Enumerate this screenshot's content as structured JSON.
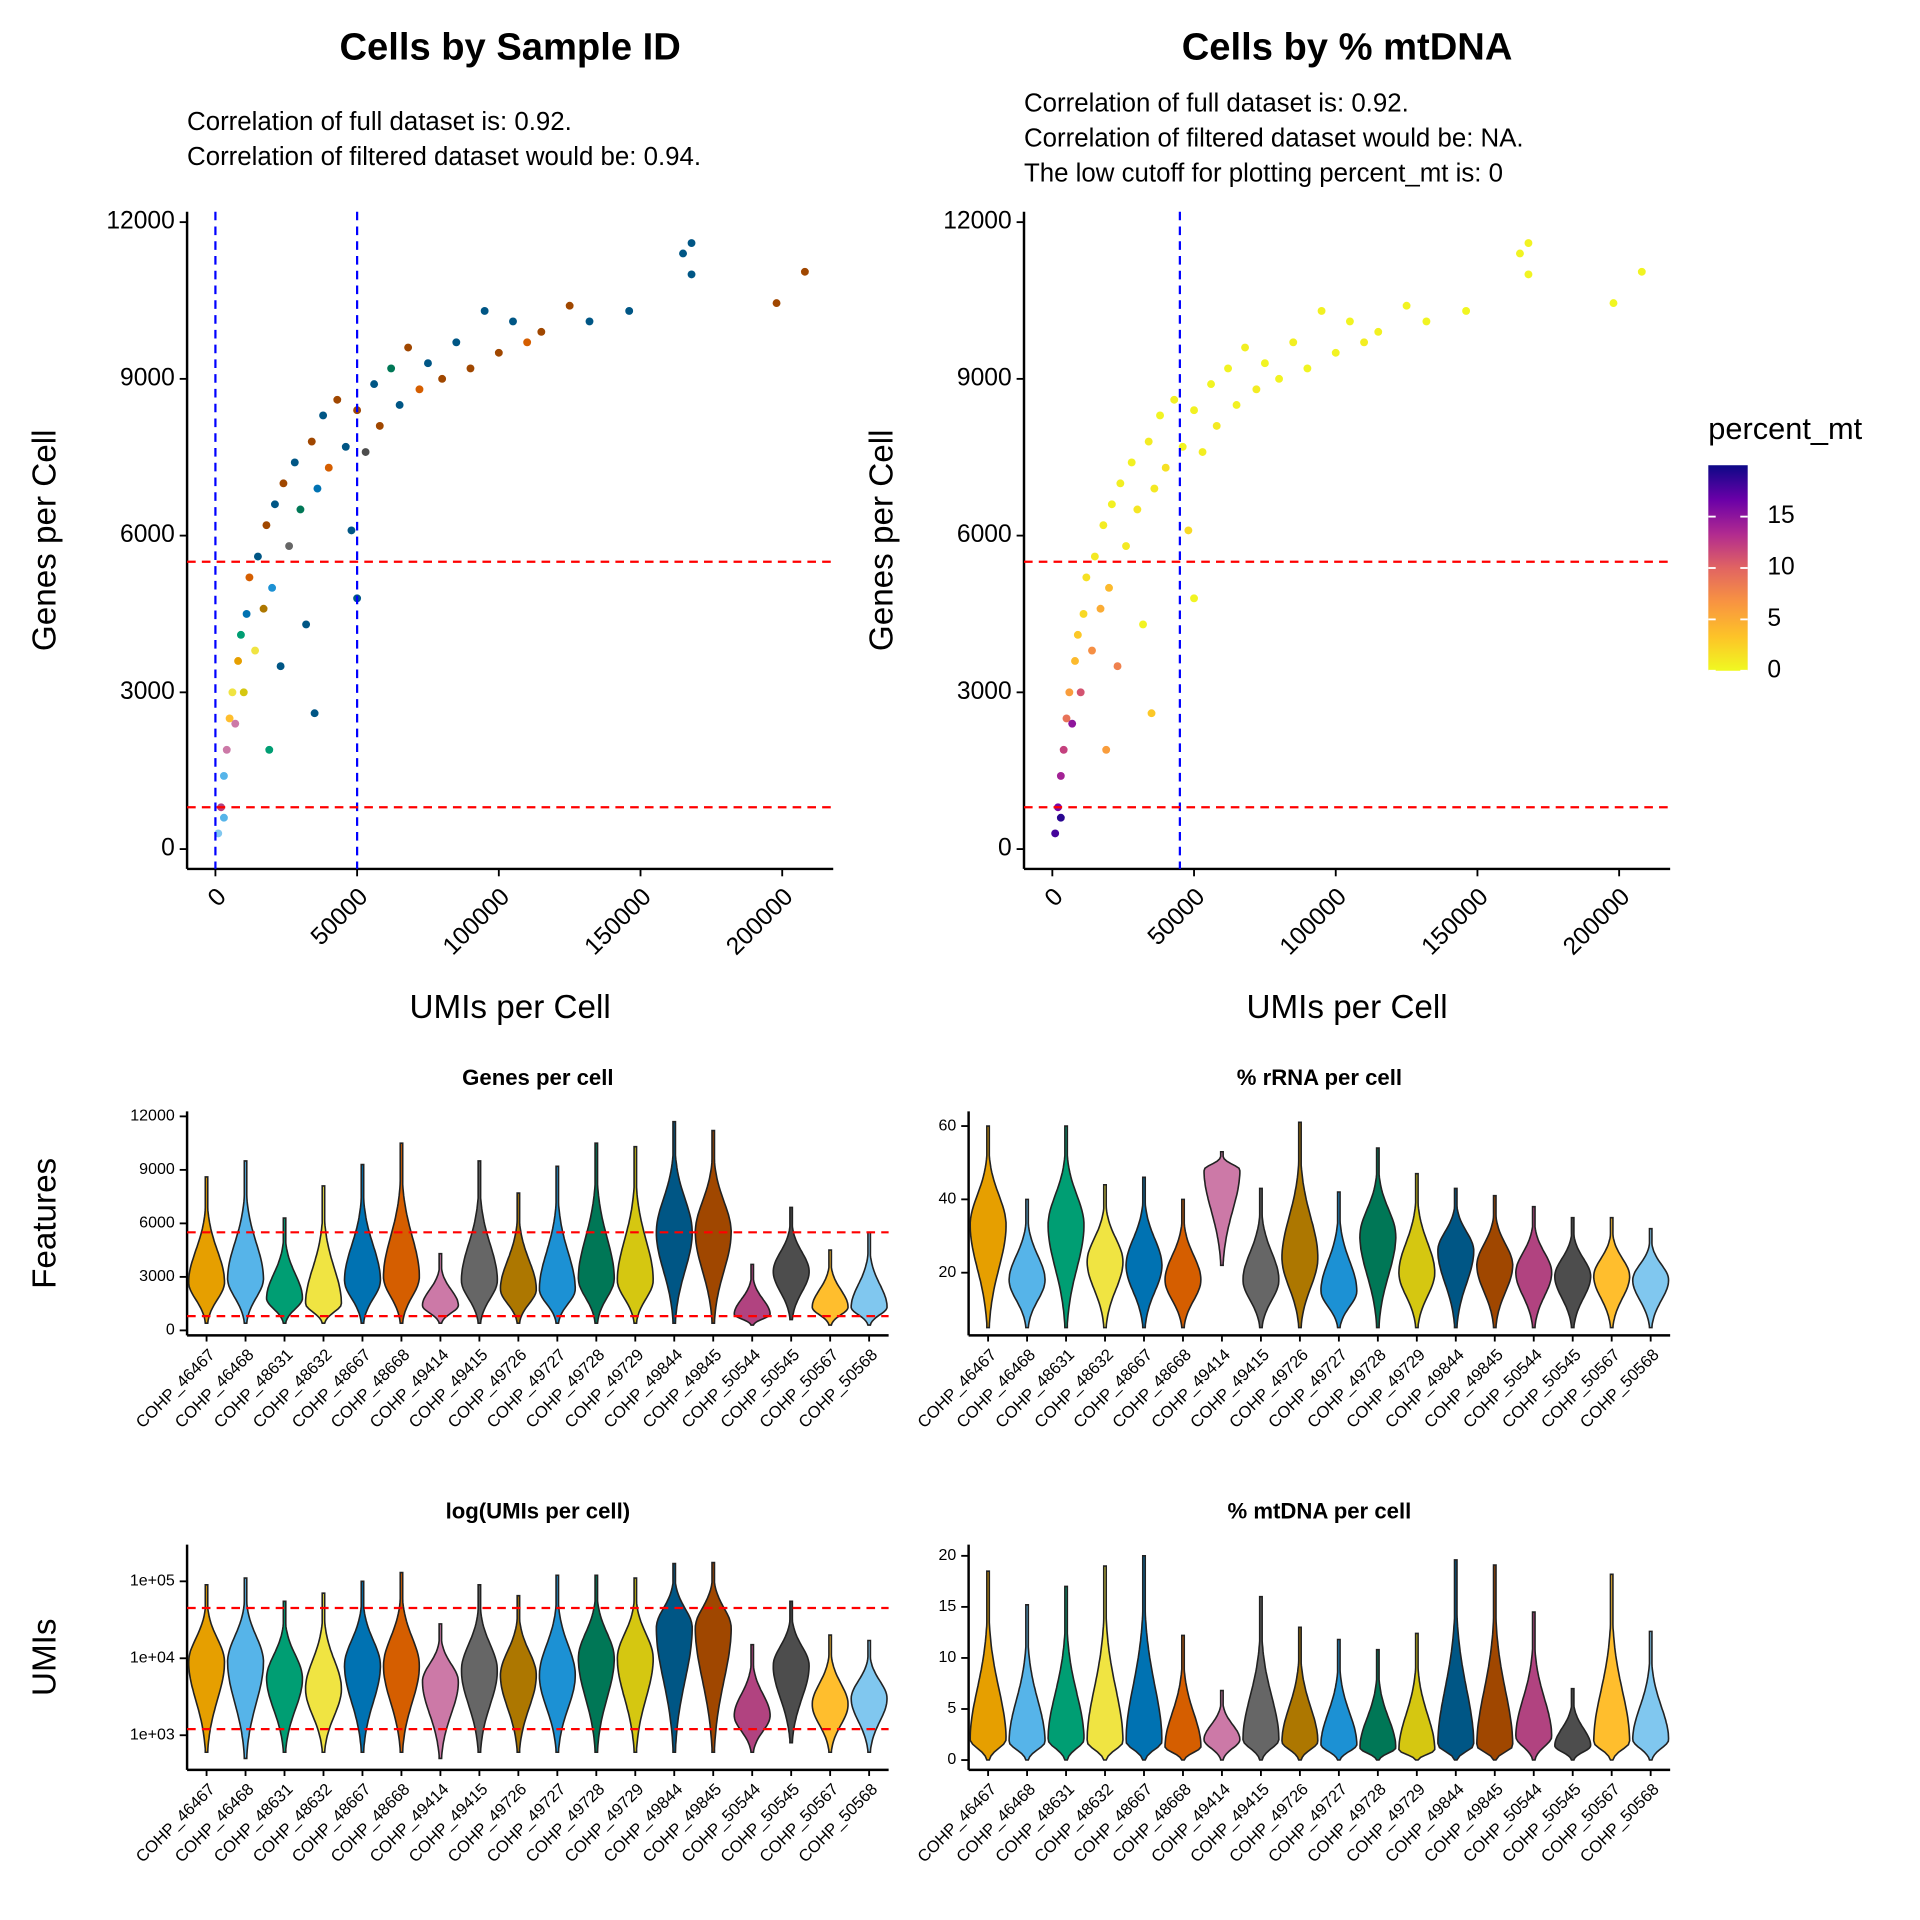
{
  "chart_data": [
    {
      "type": "scatter",
      "title": "Cells by Sample ID",
      "subtitle": [
        "Correlation of full dataset is: 0.92.",
        "Correlation of filtered dataset would be: 0.94."
      ],
      "xlabel": "UMIs per Cell",
      "ylabel": "Genes per Cell",
      "xlim": [
        -10000,
        218000
      ],
      "ylim": [
        -380,
        12200
      ],
      "xticks": [
        0,
        50000,
        100000,
        150000,
        200000
      ],
      "yticks": [
        0,
        3000,
        6000,
        9000,
        12000
      ],
      "vlines": [
        0,
        50000
      ],
      "vline_color": "#0000ff",
      "hlines": [
        5500,
        800
      ],
      "hline_color": "#ff0000",
      "x": [
        1000,
        2000,
        3000,
        4000,
        5000,
        6000,
        7000,
        8000,
        9000,
        10000,
        11000,
        12000,
        14000,
        15000,
        17000,
        18000,
        20000,
        21000,
        23000,
        24000,
        26000,
        28000,
        30000,
        32000,
        34000,
        36000,
        38000,
        40000,
        43000,
        46000,
        48000,
        50000,
        53000,
        56000,
        58000,
        62000,
        65000,
        68000,
        72000,
        75000,
        80000,
        85000,
        90000,
        95000,
        100000,
        105000,
        110000,
        115000,
        125000,
        132000,
        146000,
        165000,
        168000,
        168000,
        198000,
        208000,
        35000,
        19000,
        50000,
        3000
      ],
      "y": [
        300,
        800,
        1400,
        1900,
        2500,
        3000,
        2400,
        3600,
        4100,
        3000,
        4500,
        5200,
        3800,
        5600,
        4600,
        6200,
        5000,
        6600,
        3500,
        7000,
        5800,
        7400,
        6500,
        4300,
        7800,
        6900,
        8300,
        7300,
        8600,
        7700,
        6100,
        8400,
        7600,
        8900,
        8100,
        9200,
        8500,
        9600,
        8800,
        9300,
        9000,
        9700,
        9200,
        10300,
        9500,
        10100,
        9700,
        9900,
        10400,
        10100,
        10300,
        11400,
        11600,
        11000,
        10450,
        11050,
        2600,
        1900,
        4800,
        600
      ],
      "colors": [
        "#80C7EF",
        "#B14380",
        "#56B4E9",
        "#CC79A7",
        "#FFBE2D",
        "#F0E442",
        "#CC79A7",
        "#E69F00",
        "#009E73",
        "#D5C711",
        "#0072B2",
        "#D55E00",
        "#F0E442",
        "#005685",
        "#AD7700",
        "#A04700",
        "#1C91D4",
        "#005685",
        "#005685",
        "#A04700",
        "#666666",
        "#005685",
        "#007756",
        "#005685",
        "#A04700",
        "#0072B2",
        "#005685",
        "#D55E00",
        "#A04700",
        "#005685",
        "#005685",
        "#A04700",
        "#4D4D4D",
        "#005685",
        "#A04700",
        "#007756",
        "#005685",
        "#A04700",
        "#D55E00",
        "#005685",
        "#A04700",
        "#005685",
        "#A04700",
        "#005685",
        "#A04700",
        "#005685",
        "#D55E00",
        "#A04700",
        "#A04700",
        "#005685",
        "#005685",
        "#005685",
        "#005685",
        "#005685",
        "#A04700",
        "#A04700",
        "#005685",
        "#009E73",
        "#005685",
        "#56B4E9"
      ]
    },
    {
      "type": "scatter",
      "title": "Cells by % mtDNA",
      "subtitle": [
        "Correlation of full dataset is: 0.92.",
        "Correlation of filtered dataset would be: NA.",
        "The low cutoff for plotting percent_mt is: 0"
      ],
      "xlabel": "UMIs per Cell",
      "ylabel": "Genes per Cell",
      "xlim": [
        -10000,
        218000
      ],
      "ylim": [
        -380,
        12200
      ],
      "xticks": [
        0,
        50000,
        100000,
        150000,
        200000
      ],
      "yticks": [
        0,
        3000,
        6000,
        9000,
        12000
      ],
      "vlines": [
        45000
      ],
      "vline_color": "#0000ff",
      "hlines": [
        5500,
        800
      ],
      "hline_color": "#ff0000",
      "x": [
        1000,
        2000,
        3000,
        4000,
        5000,
        6000,
        7000,
        8000,
        9000,
        10000,
        11000,
        12000,
        14000,
        15000,
        17000,
        18000,
        20000,
        21000,
        23000,
        24000,
        26000,
        28000,
        30000,
        32000,
        34000,
        36000,
        38000,
        40000,
        43000,
        46000,
        48000,
        50000,
        53000,
        56000,
        58000,
        62000,
        65000,
        68000,
        72000,
        75000,
        80000,
        85000,
        90000,
        95000,
        100000,
        105000,
        110000,
        115000,
        125000,
        132000,
        146000,
        165000,
        168000,
        168000,
        198000,
        208000,
        35000,
        19000,
        50000,
        3000
      ],
      "y": [
        300,
        800,
        1400,
        1900,
        2500,
        3000,
        2400,
        3600,
        4100,
        3000,
        4500,
        5200,
        3800,
        5600,
        4600,
        6200,
        5000,
        6600,
        3500,
        7000,
        5800,
        7400,
        6500,
        4300,
        7800,
        6900,
        8300,
        7300,
        8600,
        7700,
        6100,
        8400,
        7600,
        8900,
        8100,
        9200,
        8500,
        9600,
        8800,
        9300,
        9000,
        9700,
        9200,
        10300,
        9500,
        10100,
        9700,
        9900,
        10400,
        10100,
        10300,
        11400,
        11600,
        11000,
        10450,
        11050,
        2600,
        1900,
        4800,
        600
      ],
      "values": [
        18,
        16,
        14,
        12,
        9,
        6,
        15,
        4,
        3,
        11,
        2,
        1.5,
        7,
        1,
        5,
        0.8,
        4,
        0.5,
        8,
        0.6,
        1,
        0.5,
        1.2,
        0.4,
        0.8,
        1,
        0.3,
        1.5,
        0.6,
        0.4,
        2,
        0.5,
        0.7,
        0.3,
        0.9,
        0.4,
        0.5,
        0.6,
        0.8,
        0.3,
        0.4,
        0.6,
        0.3,
        0.5,
        0.4,
        0.3,
        0.7,
        0.5,
        0.4,
        0.3,
        0.2,
        0.3,
        0.4,
        0.3,
        0.2,
        0.3,
        3,
        6,
        0.3,
        19
      ],
      "colorbar_title": "percent_mt",
      "clim": [
        0,
        20
      ],
      "cticks": [
        0,
        5,
        10,
        15
      ],
      "colormap": [
        "#F0F921",
        "#FDC328",
        "#F89441",
        "#E16462",
        "#B12A90",
        "#6A00A8",
        "#0D0887"
      ]
    },
    {
      "type": "violin",
      "title": "Genes per cell",
      "ylabel": "Features",
      "categories": [
        "COHP_46467",
        "COHP_46468",
        "COHP_48631",
        "COHP_48632",
        "COHP_48667",
        "COHP_48668",
        "COHP_49414",
        "COHP_49415",
        "COHP_49726",
        "COHP_49727",
        "COHP_49728",
        "COHP_49729",
        "COHP_49844",
        "COHP_49845",
        "COHP_50544",
        "COHP_50545",
        "COHP_50567",
        "COHP_50568"
      ],
      "colors": [
        "#E69F00",
        "#56B4E9",
        "#009E73",
        "#F0E442",
        "#0072B2",
        "#D55E00",
        "#CC79A7",
        "#666666",
        "#AD7700",
        "#1C91D4",
        "#007756",
        "#D5C711",
        "#005685",
        "#A04700",
        "#B14380",
        "#4D4D4D",
        "#FFBE2D",
        "#80C7EF"
      ],
      "min": [
        400,
        400,
        400,
        400,
        400,
        400,
        400,
        400,
        400,
        400,
        400,
        400,
        400,
        400,
        300,
        600,
        300,
        300
      ],
      "median": [
        2700,
        2900,
        1800,
        1500,
        2800,
        3000,
        1400,
        2800,
        2300,
        2300,
        2900,
        2800,
        5500,
        5500,
        900,
        3300,
        1300,
        1300
      ],
      "max": [
        8600,
        9500,
        6300,
        8100,
        9300,
        10500,
        4300,
        9500,
        7700,
        9200,
        10500,
        10300,
        11700,
        11200,
        3700,
        6900,
        4500,
        5500
      ],
      "ylim": [
        -280,
        12280
      ],
      "yticks": [
        0,
        3000,
        6000,
        9000,
        12000
      ],
      "hlines": [
        5500,
        800
      ],
      "hline_color": "#ff0000"
    },
    {
      "type": "violin",
      "title": "% rRNA per cell",
      "categories": [
        "COHP_46467",
        "COHP_46468",
        "COHP_48631",
        "COHP_48632",
        "COHP_48667",
        "COHP_48668",
        "COHP_49414",
        "COHP_49415",
        "COHP_49726",
        "COHP_49727",
        "COHP_49728",
        "COHP_49729",
        "COHP_49844",
        "COHP_49845",
        "COHP_50544",
        "COHP_50545",
        "COHP_50567",
        "COHP_50568"
      ],
      "colors": [
        "#E69F00",
        "#56B4E9",
        "#009E73",
        "#F0E442",
        "#0072B2",
        "#D55E00",
        "#CC79A7",
        "#666666",
        "#AD7700",
        "#1C91D4",
        "#007756",
        "#D5C711",
        "#005685",
        "#A04700",
        "#B14380",
        "#4D4D4D",
        "#FFBE2D",
        "#80C7EF"
      ],
      "min": [
        5,
        5,
        5,
        5,
        5,
        5,
        22,
        5,
        5,
        5,
        5,
        5,
        5,
        5,
        5,
        5,
        5,
        5
      ],
      "median": [
        33,
        18,
        33,
        23,
        22,
        18,
        48,
        18,
        24,
        15,
        30,
        20,
        26,
        22,
        20,
        19,
        19,
        18
      ],
      "max": [
        60,
        40,
        60,
        44,
        46,
        40,
        53,
        43,
        61,
        42,
        54,
        47,
        43,
        41,
        38,
        35,
        35,
        32
      ],
      "ylim": [
        2.9,
        64
      ],
      "yticks": [
        20,
        40,
        60
      ]
    },
    {
      "type": "violin",
      "title": "log(UMIs per cell)",
      "ylabel": "UMIs",
      "log_scale": true,
      "categories": [
        "COHP_46467",
        "COHP_46468",
        "COHP_48631",
        "COHP_48632",
        "COHP_48667",
        "COHP_48668",
        "COHP_49414",
        "COHP_49415",
        "COHP_49726",
        "COHP_49727",
        "COHP_49728",
        "COHP_49729",
        "COHP_49844",
        "COHP_49845",
        "COHP_50544",
        "COHP_50545",
        "COHP_50567",
        "COHP_50568"
      ],
      "colors": [
        "#E69F00",
        "#56B4E9",
        "#009E73",
        "#F0E442",
        "#0072B2",
        "#D55E00",
        "#CC79A7",
        "#666666",
        "#AD7700",
        "#1C91D4",
        "#007756",
        "#D5C711",
        "#005685",
        "#A04700",
        "#B14380",
        "#4D4D4D",
        "#FFBE2D",
        "#80C7EF"
      ],
      "min": [
        600,
        500,
        600,
        600,
        600,
        600,
        500,
        600,
        600,
        600,
        600,
        600,
        600,
        600,
        600,
        800,
        600,
        600
      ],
      "median": [
        9000,
        9000,
        5500,
        4000,
        8000,
        8000,
        5000,
        7000,
        6000,
        6000,
        10000,
        10000,
        25000,
        25000,
        1800,
        8000,
        2500,
        3000
      ],
      "max": [
        90000,
        110000,
        55000,
        70000,
        100000,
        130000,
        28000,
        90000,
        65000,
        120000,
        120000,
        110000,
        170000,
        175000,
        15000,
        55000,
        20000,
        17000
      ],
      "ylim": [
        355,
        300000
      ],
      "yticks": [
        {
          "value": 1000,
          "label": "1e+03"
        },
        {
          "value": 10000,
          "label": "1e+04"
        },
        {
          "value": 100000,
          "label": "1e+05"
        }
      ],
      "hlines": [
        45000,
        1200
      ],
      "hline_color": "#ff0000"
    },
    {
      "type": "violin",
      "title": "% mtDNA per cell",
      "categories": [
        "COHP_46467",
        "COHP_46468",
        "COHP_48631",
        "COHP_48632",
        "COHP_48667",
        "COHP_48668",
        "COHP_49414",
        "COHP_49415",
        "COHP_49726",
        "COHP_49727",
        "COHP_49728",
        "COHP_49729",
        "COHP_49844",
        "COHP_49845",
        "COHP_50544",
        "COHP_50545",
        "COHP_50567",
        "COHP_50568"
      ],
      "colors": [
        "#E69F00",
        "#56B4E9",
        "#009E73",
        "#F0E442",
        "#0072B2",
        "#D55E00",
        "#CC79A7",
        "#666666",
        "#AD7700",
        "#1C91D4",
        "#007756",
        "#D5C711",
        "#005685",
        "#A04700",
        "#B14380",
        "#4D4D4D",
        "#FFBE2D",
        "#80C7EF"
      ],
      "min": [
        0,
        0,
        0,
        0,
        0,
        0,
        0,
        0,
        0,
        0,
        0,
        0,
        0,
        0,
        0,
        0,
        0,
        0
      ],
      "median": [
        2,
        1.8,
        2,
        1.8,
        1.8,
        1.3,
        2,
        2,
        1.8,
        1.5,
        1.2,
        1,
        1.5,
        1.4,
        2.3,
        1.4,
        1.8,
        2
      ],
      "max": [
        18.5,
        15.2,
        17,
        19,
        20,
        12.2,
        6.8,
        16,
        13,
        11.8,
        10.8,
        12.4,
        19.6,
        19.1,
        14.5,
        7,
        18.2,
        12.6
      ],
      "ylim": [
        -0.96,
        21.1
      ],
      "yticks": [
        0,
        5,
        10,
        15,
        20
      ]
    }
  ]
}
